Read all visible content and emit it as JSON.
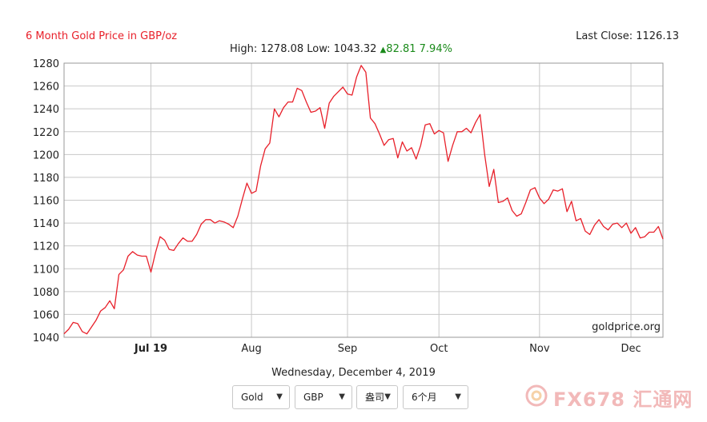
{
  "header": {
    "title": "6 Month Gold Price in GBP/oz",
    "last_close_label": "Last Close: 1126.13",
    "stats_prefix": "High: 1278.08 Low: 1043.32",
    "change": "82.81 7.94%"
  },
  "footer": {
    "date": "Wednesday, December 4, 2019",
    "selects": [
      {
        "label": "Gold"
      },
      {
        "label": "GBP"
      },
      {
        "label": "盎司"
      },
      {
        "label": "6个月"
      }
    ],
    "watermark": "FX678 汇通网"
  },
  "colors": {
    "line": "#e8202a",
    "grid": "#c8c8c8",
    "change_up": "#1a8a1a",
    "title": "#e8202a"
  },
  "chart_data": {
    "type": "line",
    "ylim": [
      1040,
      1280
    ],
    "yticks": [
      1040,
      1060,
      1080,
      1100,
      1120,
      1140,
      1160,
      1180,
      1200,
      1220,
      1240,
      1260,
      1280
    ],
    "x_tick_labels": [
      "Jul 19",
      "Aug",
      "Sep",
      "Oct",
      "Nov",
      "Dec"
    ],
    "x_tick_index": [
      19,
      41,
      62,
      82,
      104,
      124
    ],
    "source_label": "goldprice.org",
    "series": [
      {
        "values": [
          1043,
          1047,
          1053,
          1052,
          1045,
          1043,
          1049,
          1055,
          1063,
          1066,
          1072,
          1065,
          1095,
          1099,
          1111,
          1115,
          1112,
          1111,
          1111,
          1097,
          1114,
          1128,
          1125,
          1117,
          1116,
          1122,
          1127,
          1124,
          1124,
          1130,
          1139,
          1143,
          1143,
          1140,
          1142,
          1141,
          1139,
          1136,
          1146,
          1161,
          1175,
          1166,
          1168,
          1190,
          1205,
          1210,
          1240,
          1233,
          1241,
          1246,
          1246,
          1258,
          1256,
          1246,
          1237,
          1238,
          1241,
          1223,
          1245,
          1251,
          1255,
          1259,
          1253,
          1252,
          1268,
          1278,
          1272,
          1232,
          1227,
          1218,
          1208,
          1213,
          1214,
          1197,
          1211,
          1203,
          1206,
          1196,
          1208,
          1226,
          1227,
          1218,
          1221,
          1219,
          1194,
          1208,
          1220,
          1220,
          1223,
          1219,
          1228,
          1235,
          1200,
          1172,
          1187,
          1158,
          1159,
          1162,
          1151,
          1146,
          1148,
          1158,
          1169,
          1171,
          1162,
          1157,
          1161,
          1169,
          1168,
          1170,
          1150,
          1159,
          1142,
          1144,
          1133,
          1130,
          1138,
          1143,
          1137,
          1134,
          1139,
          1140,
          1136,
          1140,
          1131,
          1136,
          1127,
          1128,
          1132,
          1132,
          1137,
          1126
        ]
      }
    ]
  }
}
